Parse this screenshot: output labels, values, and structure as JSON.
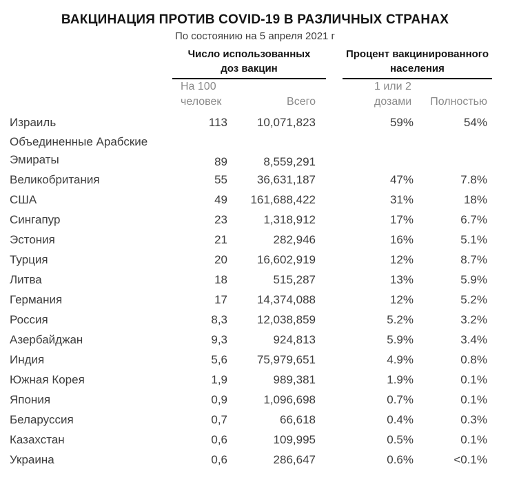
{
  "page": {
    "title": "ВАКЦИНАЦИЯ ПРОТИВ COVID-19 В РАЗЛИЧНЫХ СТРАНАХ",
    "subtitle": "По состоянию на 5 апреля 2021 г"
  },
  "chart_data": {
    "type": "table",
    "title": "ВАКЦИНАЦИЯ ПРОТИВ COVID-19 В РАЗЛИЧНЫХ СТРАНАХ",
    "subtitle": "По состоянию на 5 апреля 2021 г",
    "column_groups": [
      {
        "line1": "Число использованных",
        "line2": "доз вакцин"
      },
      {
        "line1": "Процент вакцинированного",
        "line2": "населения"
      }
    ],
    "sub_headers": {
      "per100_line1": "На 100",
      "per100_line2": "человек",
      "total": "Всего",
      "dose12_line1": "1 или 2",
      "dose12_line2": "дозами",
      "fully": "Полностью"
    },
    "rows": [
      {
        "country": "Израиль",
        "per100": "113",
        "total": "10,071,823",
        "dose12": "59%",
        "fully": "54%"
      },
      {
        "country": "Объединенные Арабские Эмираты",
        "per100": "89",
        "total": "8,559,291",
        "dose12": "",
        "fully": "",
        "two_line": true
      },
      {
        "country": "Великобритания",
        "per100": "55",
        "total": "36,631,187",
        "dose12": "47%",
        "fully": "7.8%"
      },
      {
        "country": "США",
        "per100": "49",
        "total": "161,688,422",
        "dose12": "31%",
        "fully": "18%"
      },
      {
        "country": "Сингапур",
        "per100": "23",
        "total": "1,318,912",
        "dose12": "17%",
        "fully": "6.7%"
      },
      {
        "country": "Эстония",
        "per100": "21",
        "total": "282,946",
        "dose12": "16%",
        "fully": "5.1%"
      },
      {
        "country": "Турция",
        "per100": "20",
        "total": "16,602,919",
        "dose12": "12%",
        "fully": "8.7%"
      },
      {
        "country": "Литва",
        "per100": "18",
        "total": "515,287",
        "dose12": "13%",
        "fully": "5.9%"
      },
      {
        "country": "Германия",
        "per100": "17",
        "total": "14,374,088",
        "dose12": "12%",
        "fully": "5.2%"
      },
      {
        "country": "Россия",
        "per100": "8,3",
        "total": "12,038,859",
        "dose12": "5.2%",
        "fully": "3.2%"
      },
      {
        "country": "Азербайджан",
        "per100": "9,3",
        "total": "924,813",
        "dose12": "5.9%",
        "fully": "3.4%"
      },
      {
        "country": "Индия",
        "per100": "5,6",
        "total": "75,979,651",
        "dose12": "4.9%",
        "fully": "0.8%"
      },
      {
        "country": "Южная Корея",
        "per100": "1,9",
        "total": "989,381",
        "dose12": "1.9%",
        "fully": "0.1%"
      },
      {
        "country": "Япония",
        "per100": "0,9",
        "total": "1,096,698",
        "dose12": "0.7%",
        "fully": "0.1%"
      },
      {
        "country": "Беларуссия",
        "per100": "0,7",
        "total": "66,618",
        "dose12": "0.4%",
        "fully": "0.3%"
      },
      {
        "country": "Казахстан",
        "per100": "0,6",
        "total": "109,995",
        "dose12": "0.5%",
        "fully": "0.1%"
      },
      {
        "country": "Украина",
        "per100": "0,6",
        "total": "286,647",
        "dose12": "0.6%",
        "fully": "<0.1%"
      }
    ]
  }
}
